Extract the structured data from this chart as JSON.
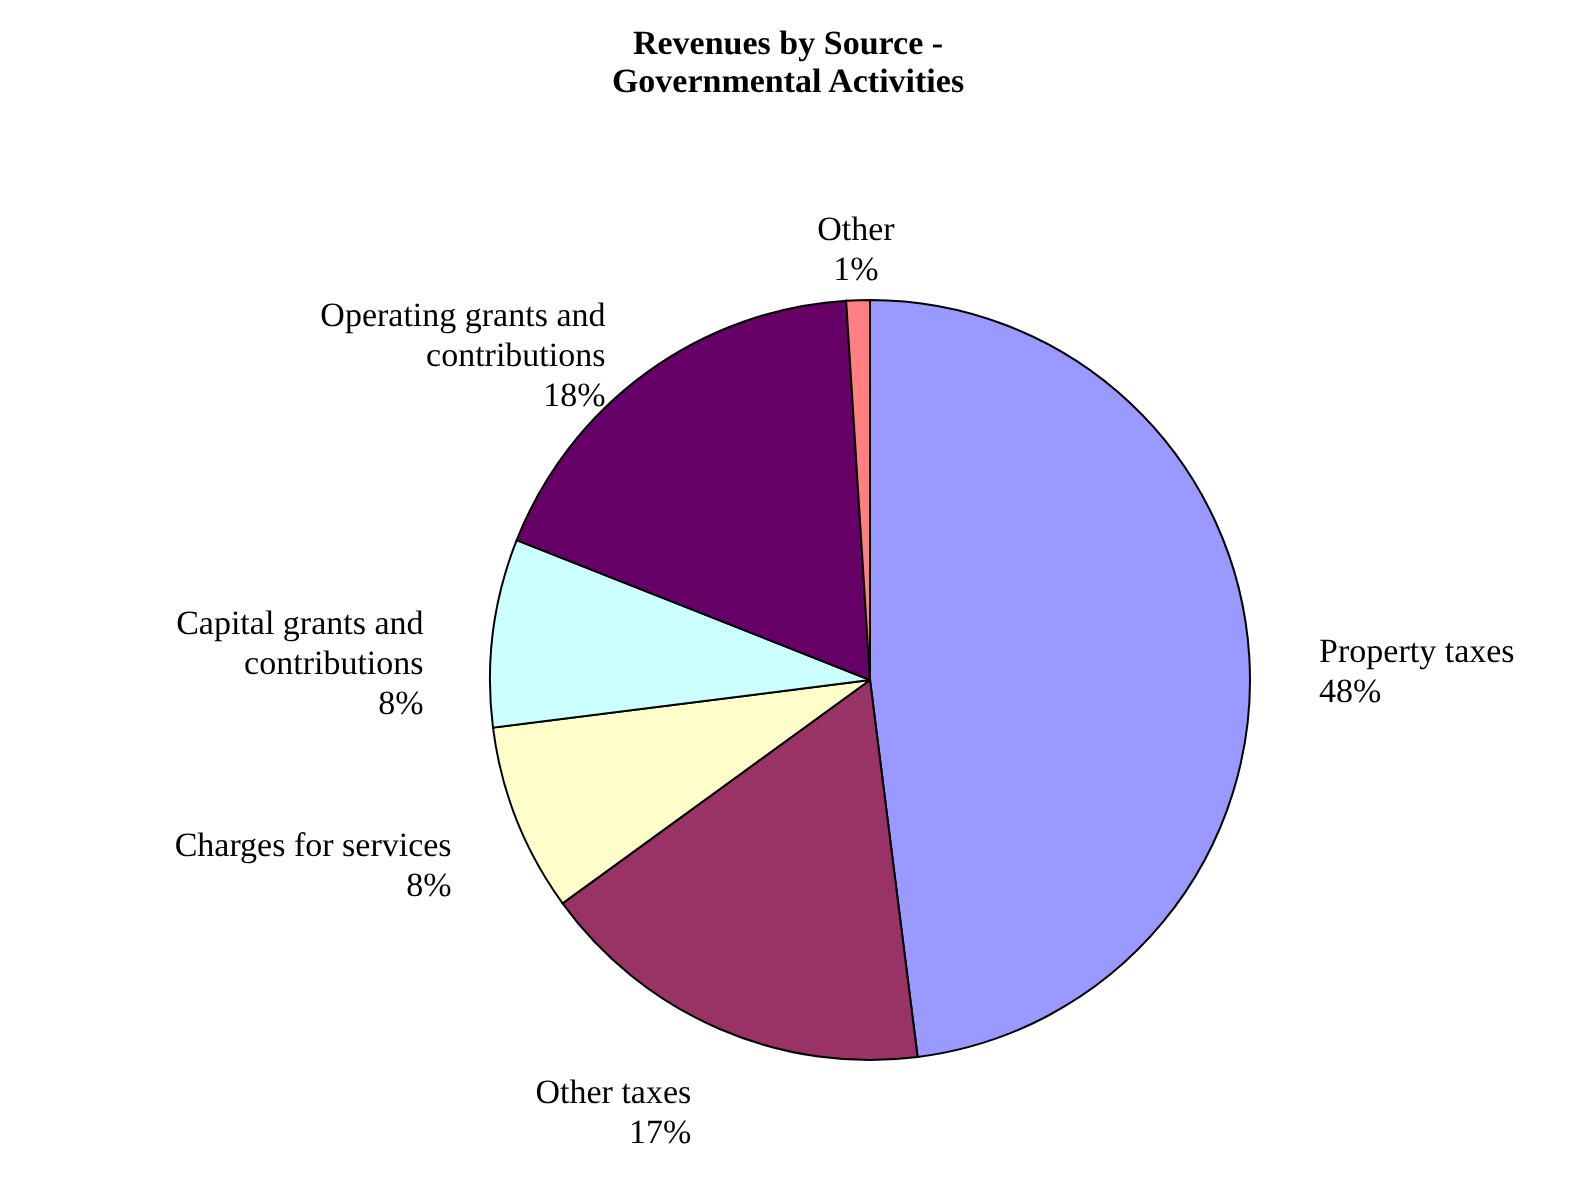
{
  "chart_data": {
    "type": "pie",
    "title": [
      "Revenues by Source -",
      "Governmental Activities"
    ],
    "categories": [
      "Property taxes",
      "Other taxes",
      "Charges for services",
      "Capital grants and contributions",
      "Operating grants and contributions",
      "Other"
    ],
    "values": [
      48,
      17,
      8,
      8,
      18,
      1
    ],
    "value_labels": [
      "48%",
      "17%",
      "8%",
      "8%",
      "18%",
      "1%"
    ],
    "colors": [
      "#9999ff",
      "#993366",
      "#ffffcc",
      "#ccffff",
      "#660066",
      "#ff8080"
    ],
    "legend": false
  }
}
